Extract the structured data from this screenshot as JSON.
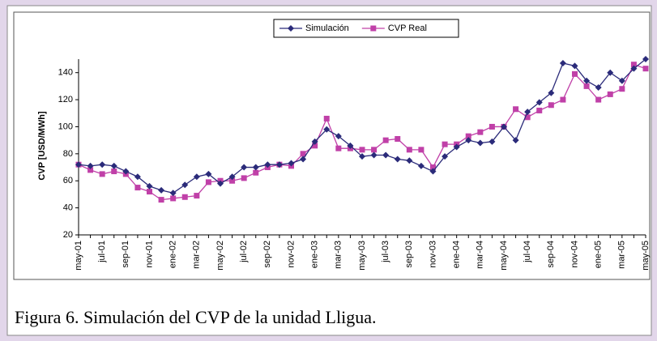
{
  "chart_data": {
    "type": "line",
    "caption": "Figura 6. Simulación del CVP de la unidad Lligua.",
    "y_label": "CVP [USD/MWh]",
    "categories": [
      "may-01",
      null,
      "jul-01",
      null,
      "sep-01",
      null,
      "nov-01",
      null,
      "ene-02",
      null,
      "mar-02",
      null,
      "may-02",
      null,
      "jul-02",
      null,
      "sep-02",
      null,
      "nov-02",
      null,
      "ene-03",
      null,
      "mar-03",
      null,
      "may-03",
      null,
      "jul-03",
      null,
      "sep-03",
      null,
      "nov-03",
      null,
      "ene-04",
      null,
      "mar-04",
      null,
      "may-04",
      null,
      "jul-04",
      null,
      "sep-04",
      null,
      "nov-04",
      null,
      "ene-05",
      null,
      "mar-05",
      null,
      "may-05"
    ],
    "series": [
      {
        "name": "Simulación",
        "color": "#2b2b7a",
        "marker": "diamond",
        "values": [
          72,
          71,
          72,
          71,
          67,
          63,
          56,
          53,
          51,
          57,
          63,
          65,
          58,
          63,
          70,
          70,
          72,
          72,
          73,
          76,
          89,
          98,
          93,
          86,
          78,
          79,
          79,
          76,
          75,
          71,
          67,
          78,
          85,
          90,
          88,
          89,
          100,
          90,
          111,
          118,
          125,
          147,
          145,
          134,
          129,
          140,
          134,
          143,
          150
        ]
      },
      {
        "name": "CVP Real",
        "color": "#c040a8",
        "marker": "square",
        "values": [
          72,
          68,
          65,
          67,
          65,
          55,
          52,
          46,
          47,
          48,
          49,
          59,
          60,
          60,
          62,
          66,
          70,
          72,
          71,
          80,
          86,
          106,
          84,
          84,
          83,
          83,
          90,
          91,
          83,
          83,
          70,
          87,
          87,
          93,
          96,
          100,
          100,
          113,
          107,
          112,
          116,
          120,
          139,
          130,
          120,
          124,
          128,
          146,
          143
        ]
      }
    ],
    "ylim": [
      20,
      150
    ],
    "yticks": [
      20,
      40,
      60,
      80,
      100,
      120,
      140
    ]
  }
}
